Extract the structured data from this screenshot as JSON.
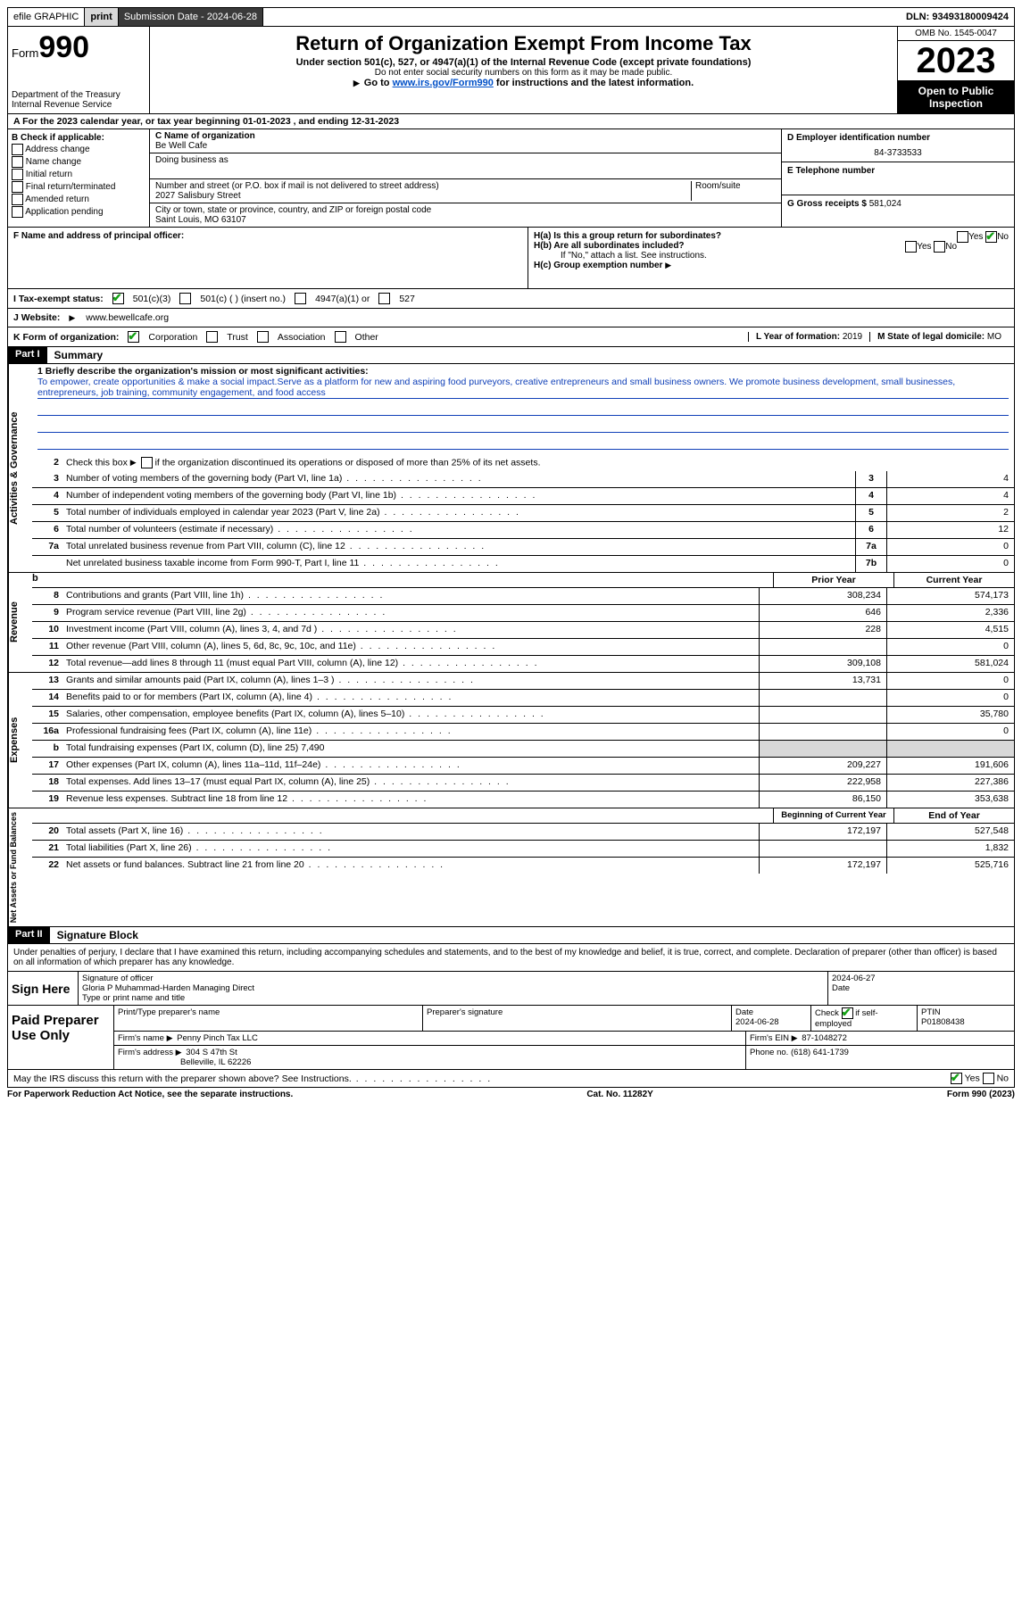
{
  "topbar": {
    "efile": "efile GRAPHIC",
    "print": "print",
    "submission": "Submission Date - 2024-06-28",
    "dln": "DLN: 93493180009424"
  },
  "header": {
    "form_word": "Form",
    "form_num": "990",
    "title": "Return of Organization Exempt From Income Tax",
    "sub1": "Under section 501(c), 527, or 4947(a)(1) of the Internal Revenue Code (except private foundations)",
    "sub2": "Do not enter social security numbers on this form as it may be made public.",
    "sub3_pre": "Go to ",
    "sub3_link": "www.irs.gov/Form990",
    "sub3_post": " for instructions and the latest information.",
    "dept": "Department of the Treasury\nInternal Revenue Service",
    "omb": "OMB No. 1545-0047",
    "year": "2023",
    "opi": "Open to Public Inspection"
  },
  "row_a": "A  For the 2023 calendar year, or tax year beginning 01-01-2023   , and ending 12-31-2023",
  "section_b": {
    "title": "B Check if applicable:",
    "opts": [
      "Address change",
      "Name change",
      "Initial return",
      "Final return/terminated",
      "Amended return",
      "Application pending"
    ]
  },
  "section_c": {
    "name_lbl": "C Name of organization",
    "name": "Be Well Cafe",
    "dba_lbl": "Doing business as",
    "addr_lbl": "Number and street (or P.O. box if mail is not delivered to street address)",
    "addr": "2027 Salisbury Street",
    "room_lbl": "Room/suite",
    "city_lbl": "City or town, state or province, country, and ZIP or foreign postal code",
    "city": "Saint Louis, MO  63107"
  },
  "section_d": {
    "ein_lbl": "D Employer identification number",
    "ein": "84-3733533",
    "tel_lbl": "E Telephone number",
    "gross_lbl": "G Gross receipts $",
    "gross": "581,024"
  },
  "section_f": {
    "lbl": "F  Name and address of principal officer:"
  },
  "section_h": {
    "ha": "H(a)  Is this a group return for subordinates?",
    "hb": "H(b)  Are all subordinates included?",
    "hb_note": "If \"No,\" attach a list. See instructions.",
    "hc": "H(c)  Group exemption number",
    "yes": "Yes",
    "no": "No"
  },
  "row_i": {
    "lbl": "I     Tax-exempt status:",
    "o1": "501(c)(3)",
    "o2": "501(c) (  ) (insert no.)",
    "o3": "4947(a)(1) or",
    "o4": "527"
  },
  "row_j": {
    "lbl": "J    Website:",
    "val": "www.bewellcafe.org"
  },
  "row_k": {
    "lbl": "K Form of organization:",
    "o1": "Corporation",
    "o2": "Trust",
    "o3": "Association",
    "o4": "Other",
    "l_lbl": "L Year of formation:",
    "l_val": "2019",
    "m_lbl": "M State of legal domicile:",
    "m_val": "MO"
  },
  "part1": {
    "hdr": "Part I",
    "title": "Summary",
    "l1_lbl": "1  Briefly describe the organization's mission or most significant activities:",
    "l1_txt": "To empower, create opportunities & make a social impact.Serve as a platform for new and aspiring food purveyors, creative entrepreneurs and small business owners. We promote business development, small businesses, entrepreneurs, job training, community engagement, and food access",
    "l2": "Check this box          if the organization discontinued its operations or disposed of more than 25% of its net assets.",
    "lines_gov": [
      {
        "n": "3",
        "d": "Number of voting members of the governing body (Part VI, line 1a)",
        "b": "3",
        "v": "4"
      },
      {
        "n": "4",
        "d": "Number of independent voting members of the governing body (Part VI, line 1b)",
        "b": "4",
        "v": "4"
      },
      {
        "n": "5",
        "d": "Total number of individuals employed in calendar year 2023 (Part V, line 2a)",
        "b": "5",
        "v": "2"
      },
      {
        "n": "6",
        "d": "Total number of volunteers (estimate if necessary)",
        "b": "6",
        "v": "12"
      },
      {
        "n": "7a",
        "d": "Total unrelated business revenue from Part VIII, column (C), line 12",
        "b": "7a",
        "v": "0"
      },
      {
        "n": "",
        "d": "Net unrelated business taxable income from Form 990-T, Part I, line 11",
        "b": "7b",
        "v": "0"
      }
    ],
    "col_prior": "Prior Year",
    "col_curr": "Current Year",
    "col_beg": "Beginning of Current Year",
    "col_end": "End of Year",
    "rev": [
      {
        "n": "8",
        "d": "Contributions and grants (Part VIII, line 1h)",
        "p": "308,234",
        "c": "574,173"
      },
      {
        "n": "9",
        "d": "Program service revenue (Part VIII, line 2g)",
        "p": "646",
        "c": "2,336"
      },
      {
        "n": "10",
        "d": "Investment income (Part VIII, column (A), lines 3, 4, and 7d )",
        "p": "228",
        "c": "4,515"
      },
      {
        "n": "11",
        "d": "Other revenue (Part VIII, column (A), lines 5, 6d, 8c, 9c, 10c, and 11e)",
        "p": "",
        "c": "0"
      },
      {
        "n": "12",
        "d": "Total revenue—add lines 8 through 11 (must equal Part VIII, column (A), line 12)",
        "p": "309,108",
        "c": "581,024"
      }
    ],
    "exp": [
      {
        "n": "13",
        "d": "Grants and similar amounts paid (Part IX, column (A), lines 1–3 )",
        "p": "13,731",
        "c": "0"
      },
      {
        "n": "14",
        "d": "Benefits paid to or for members (Part IX, column (A), line 4)",
        "p": "",
        "c": "0"
      },
      {
        "n": "15",
        "d": "Salaries, other compensation, employee benefits (Part IX, column (A), lines 5–10)",
        "p": "",
        "c": "35,780"
      },
      {
        "n": "16a",
        "d": "Professional fundraising fees (Part IX, column (A), line 11e)",
        "p": "",
        "c": "0"
      },
      {
        "n": "b",
        "d": "Total fundraising expenses (Part IX, column (D), line 25) 7,490",
        "shade": true
      },
      {
        "n": "17",
        "d": "Other expenses (Part IX, column (A), lines 11a–11d, 11f–24e)",
        "p": "209,227",
        "c": "191,606"
      },
      {
        "n": "18",
        "d": "Total expenses. Add lines 13–17 (must equal Part IX, column (A), line 25)",
        "p": "222,958",
        "c": "227,386"
      },
      {
        "n": "19",
        "d": "Revenue less expenses. Subtract line 18 from line 12",
        "p": "86,150",
        "c": "353,638"
      }
    ],
    "net": [
      {
        "n": "20",
        "d": "Total assets (Part X, line 16)",
        "p": "172,197",
        "c": "527,548"
      },
      {
        "n": "21",
        "d": "Total liabilities (Part X, line 26)",
        "p": "",
        "c": "1,832"
      },
      {
        "n": "22",
        "d": "Net assets or fund balances. Subtract line 21 from line 20",
        "p": "172,197",
        "c": "525,716"
      }
    ]
  },
  "part2": {
    "hdr": "Part II",
    "title": "Signature Block",
    "perjury": "Under penalties of perjury, I declare that I have examined this return, including accompanying schedules and statements, and to the best of my knowledge and belief, it is true, correct, and complete. Declaration of preparer (other than officer) is based on all information of which preparer has any knowledge."
  },
  "sign": {
    "lbl": "Sign Here",
    "sig_lbl": "Signature of officer",
    "date_lbl": "Date",
    "date": "2024-06-27",
    "name": "Gloria P Muhammad-Harden  Managing Direct",
    "type_lbl": "Type or print name and title"
  },
  "prep": {
    "lbl": "Paid Preparer Use Only",
    "c1": "Print/Type preparer's name",
    "c2": "Preparer's signature",
    "c3_lbl": "Date",
    "c3": "2024-06-28",
    "c4": "Check        if self-employed",
    "c5_lbl": "PTIN",
    "c5": "P01808438",
    "firm_lbl": "Firm's name",
    "firm": "Penny Pinch Tax LLC",
    "ein_lbl": "Firm's EIN",
    "ein": "87-1048272",
    "addr_lbl": "Firm's address",
    "addr1": "304 S 47th St",
    "addr2": "Belleville, IL  62226",
    "phone_lbl": "Phone no.",
    "phone": "(618) 641-1739"
  },
  "discuss": {
    "txt": "May the IRS discuss this return with the preparer shown above? See Instructions.",
    "yes": "Yes",
    "no": "No"
  },
  "footer": {
    "l": "For Paperwork Reduction Act Notice, see the separate instructions.",
    "m": "Cat. No. 11282Y",
    "r": "Form 990 (2023)"
  },
  "vlabels": {
    "gov": "Activities & Governance",
    "rev": "Revenue",
    "exp": "Expenses",
    "net": "Net Assets or Fund Balances"
  }
}
